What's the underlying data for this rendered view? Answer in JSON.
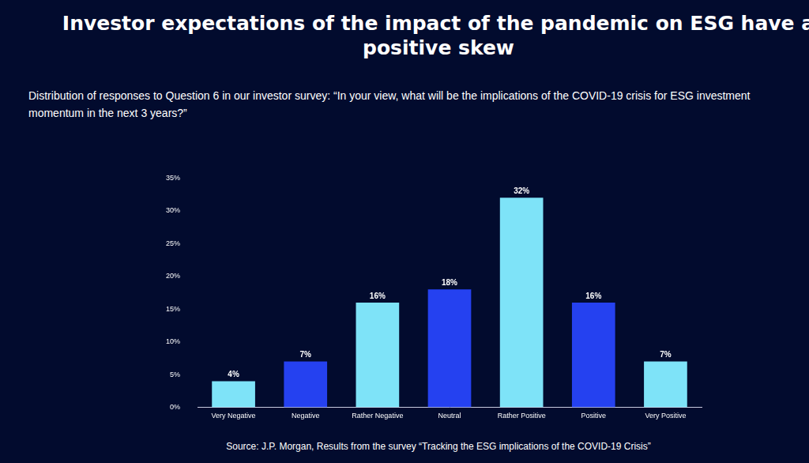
{
  "chart_data": {
    "type": "bar",
    "title": "Investor expectations of the impact of the pandemic on ESG have a positive skew",
    "subtitle": "Distribution of responses to Question 6 in our investor survey: “In your view, what will be the implications of the COVID-19 crisis for ESG investment momentum in the next 3 years?”",
    "source": "Source: J.P. Morgan, Results from the survey “Tracking the ESG implications of the COVID-19 Crisis”",
    "categories": [
      "Very Negative",
      "Negative",
      "Rather Negative",
      "Neutral",
      "Rather Positive",
      "Positive",
      "Very Positive"
    ],
    "values": [
      4,
      7,
      16,
      18,
      32,
      16,
      7
    ],
    "value_labels": [
      "4%",
      "7%",
      "16%",
      "18%",
      "32%",
      "16%",
      "7%"
    ],
    "colors": [
      "#7ee3f8",
      "#2541f0",
      "#7ee3f8",
      "#2541f0",
      "#7ee3f8",
      "#2541f0",
      "#7ee3f8"
    ],
    "ylim": [
      0,
      35
    ],
    "yticks": [
      {
        "value": 0,
        "label": "0%"
      },
      {
        "value": 5,
        "label": "5%"
      },
      {
        "value": 10,
        "label": "10%"
      },
      {
        "value": 15,
        "label": "15%"
      },
      {
        "value": 20,
        "label": "20%"
      },
      {
        "value": 25,
        "label": "25%"
      },
      {
        "value": 30,
        "label": "30%"
      },
      {
        "value": 35,
        "label": "35%"
      }
    ],
    "grid": false,
    "data_labels": true
  }
}
